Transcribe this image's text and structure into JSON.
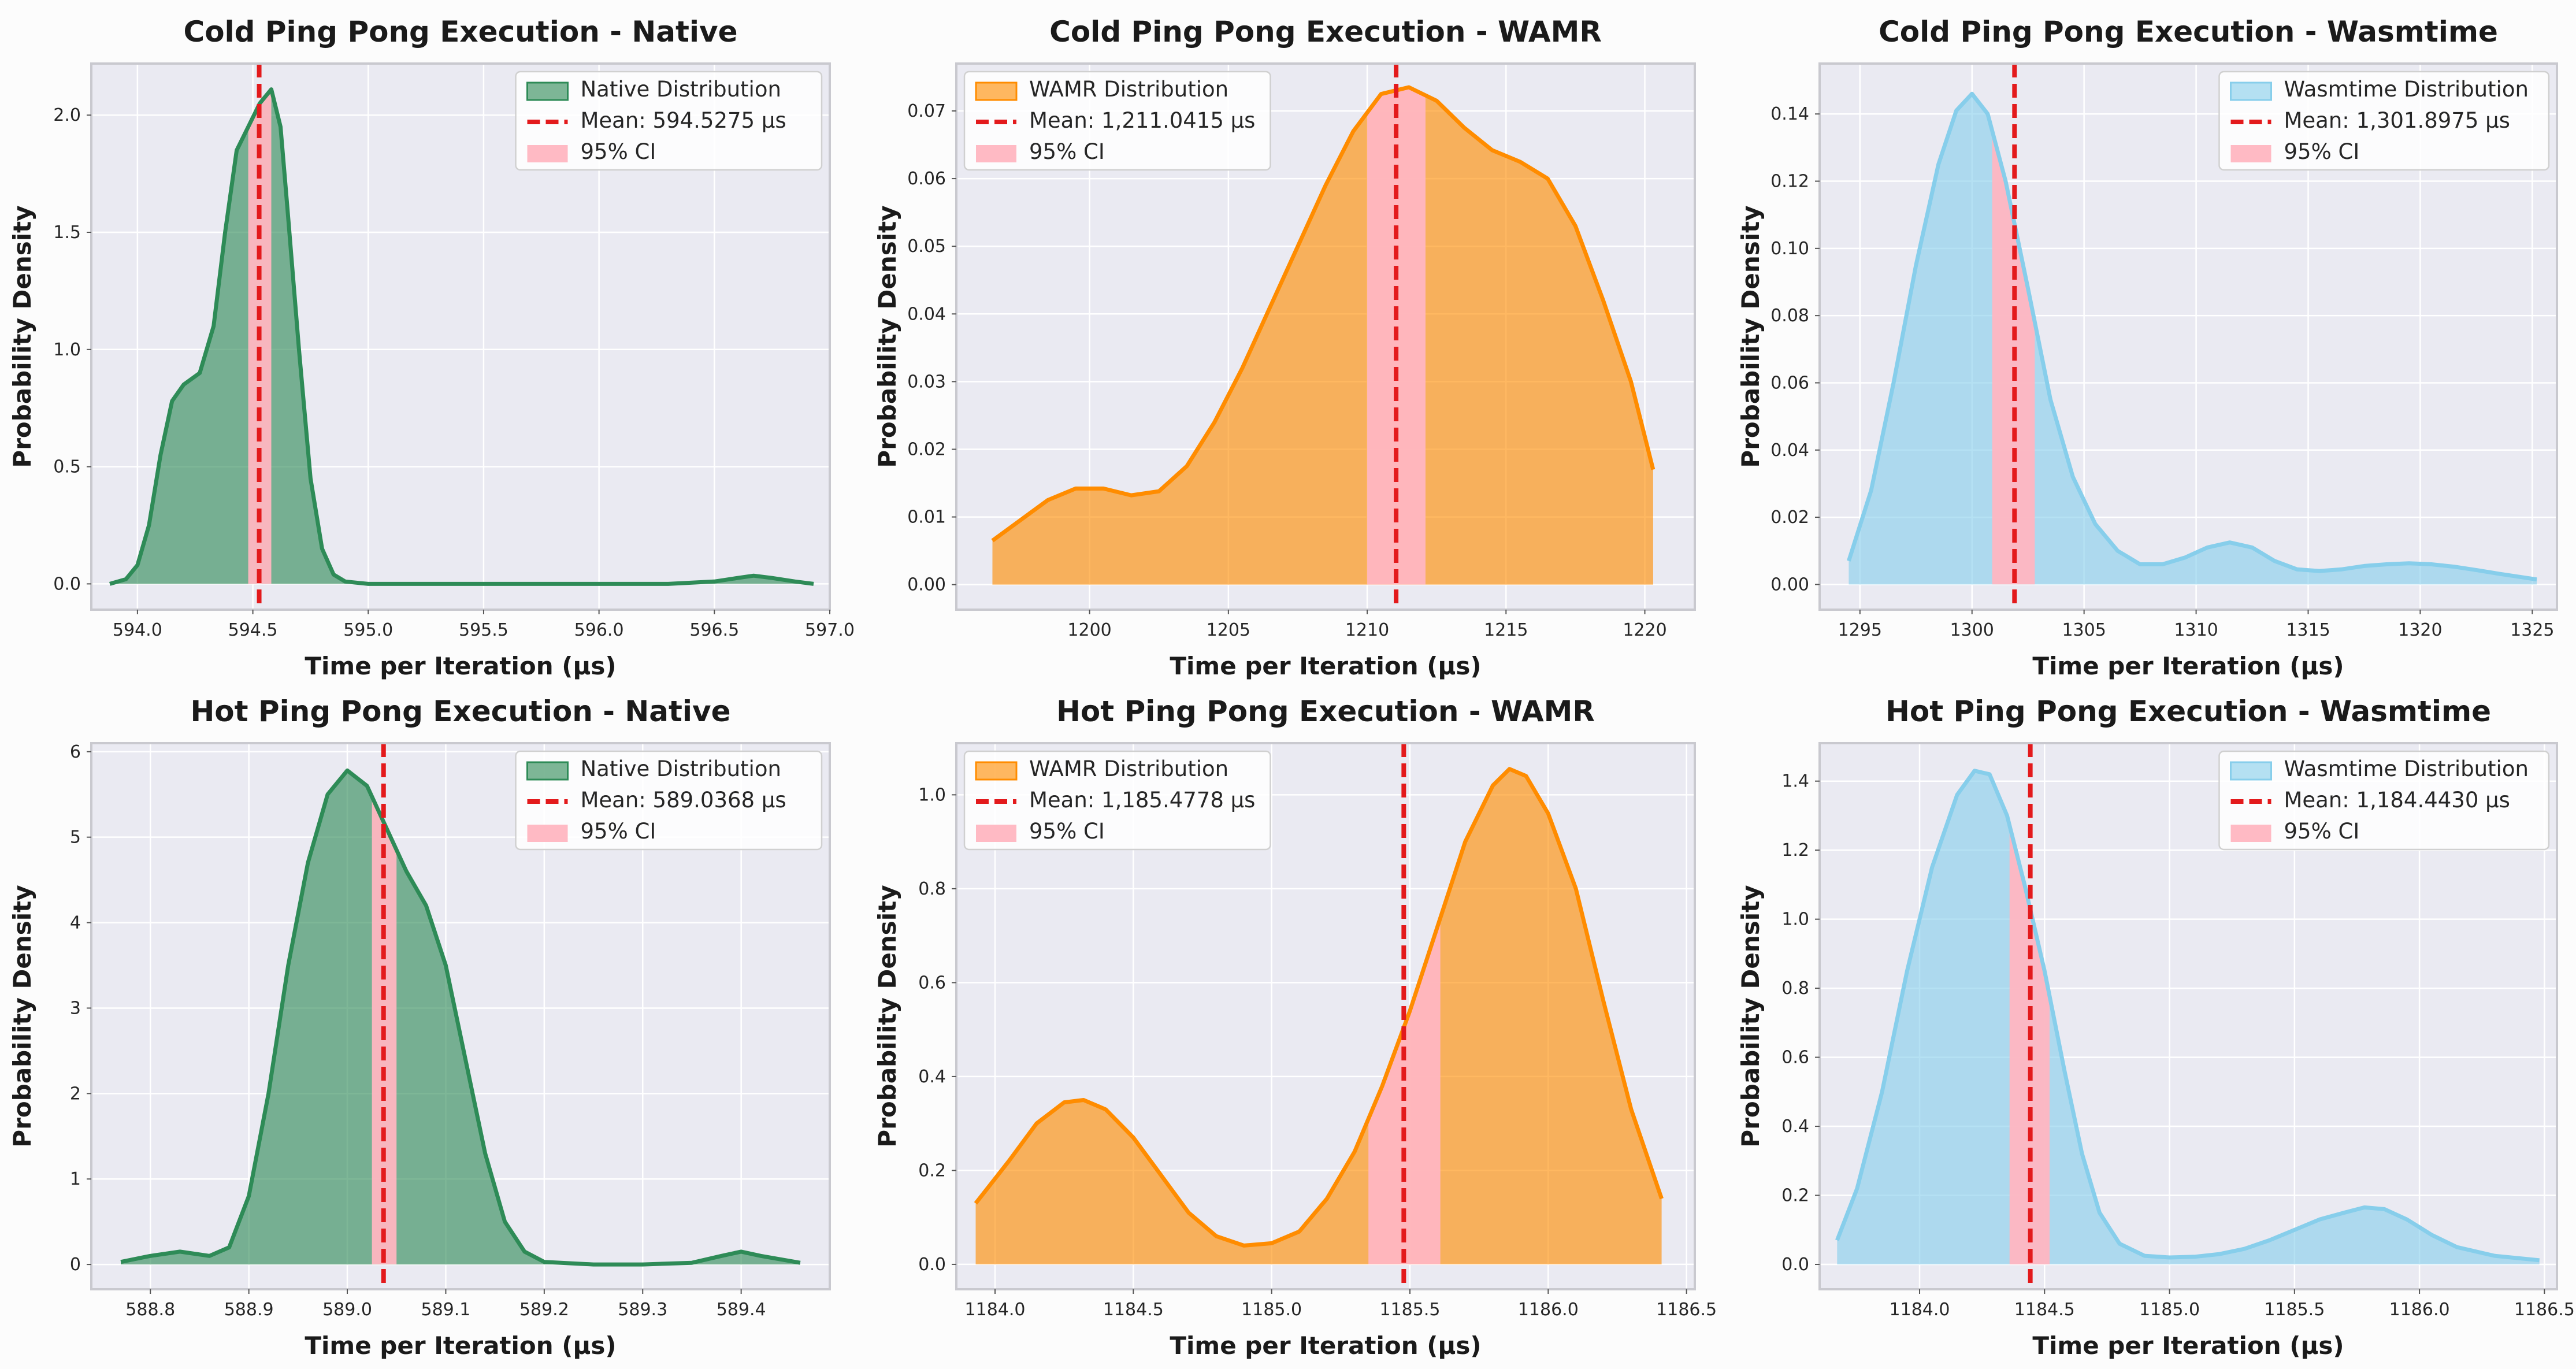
{
  "chart_data": [
    {
      "type": "area",
      "title": "Cold Ping Pong Execution - Native",
      "xlabel": "Time per Iteration (μs)",
      "ylabel": "Probability Density",
      "xlim": [
        593.8,
        597.0
      ],
      "ylim": [
        -0.11,
        2.22
      ],
      "xticks": [
        594.0,
        594.5,
        595.0,
        595.5,
        596.0,
        596.5,
        597.0
      ],
      "xtick_labels": [
        "594.0",
        "594.5",
        "595.0",
        "595.5",
        "596.0",
        "596.5",
        "597.0"
      ],
      "yticks": [
        0.0,
        0.5,
        1.0,
        1.5,
        2.0
      ],
      "ytick_labels": [
        "0.0",
        "0.5",
        "1.0",
        "1.5",
        "2.0"
      ],
      "color": "#2e8b57",
      "legend_position": "upper right",
      "series": [
        {
          "name": "Native Distribution",
          "kind": "density",
          "x": [
            593.88,
            593.95,
            594.0,
            594.05,
            594.1,
            594.15,
            594.2,
            594.27,
            594.33,
            594.38,
            594.43,
            594.48,
            594.53,
            594.58,
            594.62,
            594.65,
            594.7,
            594.75,
            594.8,
            594.85,
            594.9,
            595.0,
            595.2,
            595.5,
            596.0,
            596.3,
            596.5,
            596.6,
            596.67,
            596.75,
            596.85,
            596.93
          ],
          "y": [
            0.0,
            0.02,
            0.08,
            0.25,
            0.55,
            0.78,
            0.85,
            0.9,
            1.1,
            1.5,
            1.85,
            1.95,
            2.05,
            2.11,
            1.95,
            1.6,
            1.0,
            0.45,
            0.15,
            0.04,
            0.01,
            0.0,
            0.0,
            0.0,
            0.0,
            0.0,
            0.01,
            0.025,
            0.035,
            0.025,
            0.01,
            0.0
          ]
        },
        {
          "name": "Mean: 594.5275 μs",
          "kind": "mean",
          "value": 594.5275
        },
        {
          "name": "95% CI",
          "kind": "ci",
          "range": [
            594.48,
            594.58
          ]
        }
      ]
    },
    {
      "type": "area",
      "title": "Cold Ping Pong Execution - WAMR",
      "xlabel": "Time per Iteration (μs)",
      "ylabel": "Probability Density",
      "xlim": [
        1195.2,
        1221.8
      ],
      "ylim": [
        -0.0037,
        0.077
      ],
      "xticks": [
        1200,
        1205,
        1210,
        1215,
        1220
      ],
      "xtick_labels": [
        "1200",
        "1205",
        "1210",
        "1215",
        "1220"
      ],
      "yticks": [
        0.0,
        0.01,
        0.02,
        0.03,
        0.04,
        0.05,
        0.06,
        0.07
      ],
      "ytick_labels": [
        "0.00",
        "0.01",
        "0.02",
        "0.03",
        "0.04",
        "0.05",
        "0.06",
        "0.07"
      ],
      "color": "#ff8c00",
      "legend_position": "upper left",
      "series": [
        {
          "name": "WAMR Distribution",
          "kind": "density",
          "x": [
            1196.5,
            1197.5,
            1198.5,
            1199.5,
            1200.5,
            1201.5,
            1202.5,
            1203.5,
            1204.5,
            1205.5,
            1206.5,
            1207.5,
            1208.5,
            1209.5,
            1210.5,
            1211.5,
            1212.5,
            1213.5,
            1214.5,
            1215.5,
            1216.5,
            1217.5,
            1218.5,
            1219.5,
            1220.3
          ],
          "y": [
            0.0065,
            0.0095,
            0.0125,
            0.0142,
            0.0142,
            0.0132,
            0.0138,
            0.0175,
            0.024,
            0.032,
            0.041,
            0.05,
            0.059,
            0.067,
            0.0725,
            0.0735,
            0.0715,
            0.0675,
            0.0642,
            0.0625,
            0.06,
            0.053,
            0.042,
            0.03,
            0.017
          ]
        },
        {
          "name": "Mean: 1,211.0415 μs",
          "kind": "mean",
          "value": 1211.0415
        },
        {
          "name": "95% CI",
          "kind": "ci",
          "range": [
            1210.0,
            1212.1
          ]
        }
      ]
    },
    {
      "type": "area",
      "title": "Cold Ping Pong Execution - Wasmtime",
      "xlabel": "Time per Iteration (μs)",
      "ylabel": "Probability Density",
      "xlim": [
        1293.2,
        1326.1
      ],
      "ylim": [
        -0.0075,
        0.155
      ],
      "xticks": [
        1295,
        1300,
        1305,
        1310,
        1315,
        1320,
        1325
      ],
      "xtick_labels": [
        "1295",
        "1300",
        "1305",
        "1310",
        "1315",
        "1320",
        "1325"
      ],
      "yticks": [
        0.0,
        0.02,
        0.04,
        0.06,
        0.08,
        0.1,
        0.12,
        0.14
      ],
      "ytick_labels": [
        "0.00",
        "0.02",
        "0.04",
        "0.06",
        "0.08",
        "0.10",
        "0.12",
        "0.14"
      ],
      "color": "#87ceeb",
      "legend_position": "upper right",
      "series": [
        {
          "name": "Wasmtime Distribution",
          "kind": "density",
          "x": [
            1294.5,
            1295.5,
            1296.5,
            1297.5,
            1298.5,
            1299.3,
            1300.0,
            1300.7,
            1301.5,
            1302.5,
            1303.5,
            1304.5,
            1305.5,
            1306.5,
            1307.5,
            1308.5,
            1309.5,
            1310.5,
            1311.5,
            1312.5,
            1313.5,
            1314.5,
            1315.5,
            1316.5,
            1317.5,
            1318.5,
            1319.5,
            1320.5,
            1321.5,
            1322.5,
            1323.5,
            1325.2
          ],
          "y": [
            0.007,
            0.028,
            0.06,
            0.095,
            0.125,
            0.141,
            0.146,
            0.14,
            0.12,
            0.088,
            0.055,
            0.032,
            0.018,
            0.01,
            0.006,
            0.006,
            0.008,
            0.011,
            0.0125,
            0.011,
            0.007,
            0.0045,
            0.004,
            0.0045,
            0.0055,
            0.006,
            0.0063,
            0.006,
            0.0053,
            0.0043,
            0.0032,
            0.0015
          ]
        },
        {
          "name": "Mean: 1,301.8975 μs",
          "kind": "mean",
          "value": 1301.8975
        },
        {
          "name": "95% CI",
          "kind": "ci",
          "range": [
            1300.9,
            1302.8
          ]
        }
      ]
    },
    {
      "type": "area",
      "title": "Hot Ping Pong Execution - Native",
      "xlabel": "Time per Iteration (μs)",
      "ylabel": "Probability Density",
      "xlim": [
        588.74,
        589.49
      ],
      "ylim": [
        -0.29,
        6.1
      ],
      "xticks": [
        588.8,
        588.9,
        589.0,
        589.1,
        589.2,
        589.3,
        589.4
      ],
      "xtick_labels": [
        "588.8",
        "588.9",
        "589.0",
        "589.1",
        "589.2",
        "589.3",
        "589.4"
      ],
      "yticks": [
        0,
        1,
        2,
        3,
        4,
        5,
        6
      ],
      "ytick_labels": [
        "0",
        "1",
        "2",
        "3",
        "4",
        "5",
        "6"
      ],
      "color": "#2e8b57",
      "legend_position": "upper right",
      "series": [
        {
          "name": "Native Distribution",
          "kind": "density",
          "x": [
            588.77,
            588.8,
            588.83,
            588.86,
            588.88,
            588.9,
            588.92,
            588.94,
            588.96,
            588.98,
            589.0,
            589.02,
            589.04,
            589.06,
            589.08,
            589.1,
            589.12,
            589.14,
            589.16,
            589.18,
            589.2,
            589.25,
            589.3,
            589.35,
            589.38,
            589.4,
            589.42,
            589.46
          ],
          "y": [
            0.03,
            0.1,
            0.15,
            0.1,
            0.2,
            0.8,
            2.0,
            3.5,
            4.7,
            5.5,
            5.78,
            5.6,
            5.1,
            4.6,
            4.2,
            3.5,
            2.4,
            1.3,
            0.5,
            0.15,
            0.03,
            0.0,
            0.0,
            0.02,
            0.1,
            0.15,
            0.1,
            0.02
          ]
        },
        {
          "name": "Mean: 589.0368 μs",
          "kind": "mean",
          "value": 589.0368
        },
        {
          "name": "95% CI",
          "kind": "ci",
          "range": [
            589.025,
            589.05
          ]
        }
      ]
    },
    {
      "type": "area",
      "title": "Hot Ping Pong Execution - WAMR",
      "xlabel": "Time per Iteration (μs)",
      "ylabel": "Probability Density",
      "xlim": [
        1183.86,
        1186.53
      ],
      "ylim": [
        -0.053,
        1.11
      ],
      "xticks": [
        1184.0,
        1184.5,
        1185.0,
        1185.5,
        1186.0,
        1186.5
      ],
      "xtick_labels": [
        "1184.0",
        "1184.5",
        "1185.0",
        "1185.5",
        "1186.0",
        "1186.5"
      ],
      "yticks": [
        0.0,
        0.2,
        0.4,
        0.6,
        0.8,
        1.0
      ],
      "ytick_labels": [
        "0.0",
        "0.2",
        "0.4",
        "0.6",
        "0.8",
        "1.0"
      ],
      "color": "#ff8c00",
      "legend_position": "upper left",
      "series": [
        {
          "name": "WAMR Distribution",
          "kind": "density",
          "x": [
            1183.93,
            1184.05,
            1184.15,
            1184.25,
            1184.32,
            1184.4,
            1184.5,
            1184.6,
            1184.7,
            1184.8,
            1184.9,
            1185.0,
            1185.1,
            1185.2,
            1185.3,
            1185.4,
            1185.5,
            1185.6,
            1185.7,
            1185.8,
            1185.86,
            1185.92,
            1186.0,
            1186.1,
            1186.2,
            1186.3,
            1186.41
          ],
          "y": [
            0.13,
            0.22,
            0.3,
            0.345,
            0.35,
            0.33,
            0.27,
            0.19,
            0.11,
            0.06,
            0.04,
            0.045,
            0.07,
            0.14,
            0.24,
            0.38,
            0.54,
            0.72,
            0.9,
            1.02,
            1.055,
            1.04,
            0.96,
            0.8,
            0.56,
            0.33,
            0.14
          ]
        },
        {
          "name": "Mean: 1,185.4778 μs",
          "kind": "mean",
          "value": 1185.4778
        },
        {
          "name": "95% CI",
          "kind": "ci",
          "range": [
            1185.35,
            1185.61
          ]
        }
      ]
    },
    {
      "type": "area",
      "title": "Hot Ping Pong Execution - Wasmtime",
      "xlabel": "Time per Iteration (μs)",
      "ylabel": "Probability Density",
      "xlim": [
        1183.6,
        1186.55
      ],
      "ylim": [
        -0.072,
        1.51
      ],
      "xticks": [
        1184.0,
        1184.5,
        1185.0,
        1185.5,
        1186.0,
        1186.5
      ],
      "xtick_labels": [
        "1184.0",
        "1184.5",
        "1185.0",
        "1185.5",
        "1186.0",
        "1186.5"
      ],
      "yticks": [
        0.0,
        0.2,
        0.4,
        0.6,
        0.8,
        1.0,
        1.2,
        1.4
      ],
      "ytick_labels": [
        "0.0",
        "0.2",
        "0.4",
        "0.6",
        "0.8",
        "1.0",
        "1.2",
        "1.4"
      ],
      "color": "#87ceeb",
      "legend_position": "upper right",
      "series": [
        {
          "name": "Wasmtime Distribution",
          "kind": "density",
          "x": [
            1183.67,
            1183.75,
            1183.85,
            1183.95,
            1184.05,
            1184.15,
            1184.22,
            1184.28,
            1184.35,
            1184.42,
            1184.5,
            1184.58,
            1184.65,
            1184.72,
            1184.8,
            1184.9,
            1185.0,
            1185.1,
            1185.2,
            1185.3,
            1185.4,
            1185.5,
            1185.6,
            1185.7,
            1185.78,
            1185.86,
            1185.95,
            1186.05,
            1186.15,
            1186.3,
            1186.48
          ],
          "y": [
            0.07,
            0.22,
            0.5,
            0.85,
            1.15,
            1.36,
            1.43,
            1.42,
            1.3,
            1.1,
            0.85,
            0.56,
            0.32,
            0.15,
            0.06,
            0.025,
            0.02,
            0.022,
            0.03,
            0.045,
            0.07,
            0.1,
            0.13,
            0.15,
            0.165,
            0.16,
            0.13,
            0.085,
            0.05,
            0.025,
            0.012
          ]
        },
        {
          "name": "Mean: 1,184.4430 μs",
          "kind": "mean",
          "value": 1184.443
        },
        {
          "name": "95% CI",
          "kind": "ci",
          "range": [
            1184.36,
            1184.52
          ]
        }
      ]
    }
  ],
  "colors": {
    "mean_line": "#e31a1c",
    "ci_fill": "#ffb6c1",
    "grid": "#ffffff",
    "plot_background": "#eaeaf2"
  }
}
